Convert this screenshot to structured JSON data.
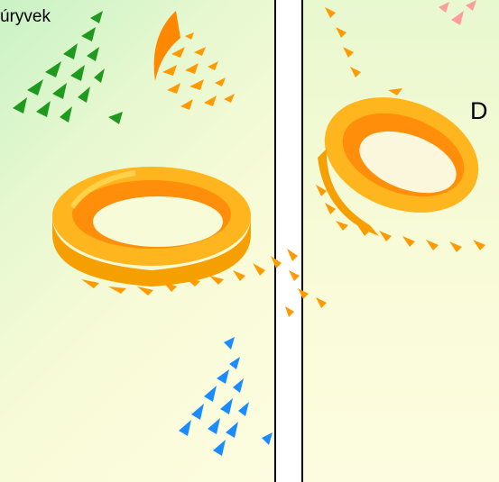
{
  "left_panel": {
    "text": "úryvek"
  },
  "right_panel": {
    "text": "D"
  },
  "colors": {
    "ring_outer": "#ffb51e",
    "ring_inner": "#ff8f0a",
    "ring_highlight": "#ffd24a",
    "streak_orange": "#ff9a00",
    "streak_green": "#1f9a1f",
    "streak_blue": "#1a8cff",
    "streak_pink": "#ff9c9c"
  }
}
